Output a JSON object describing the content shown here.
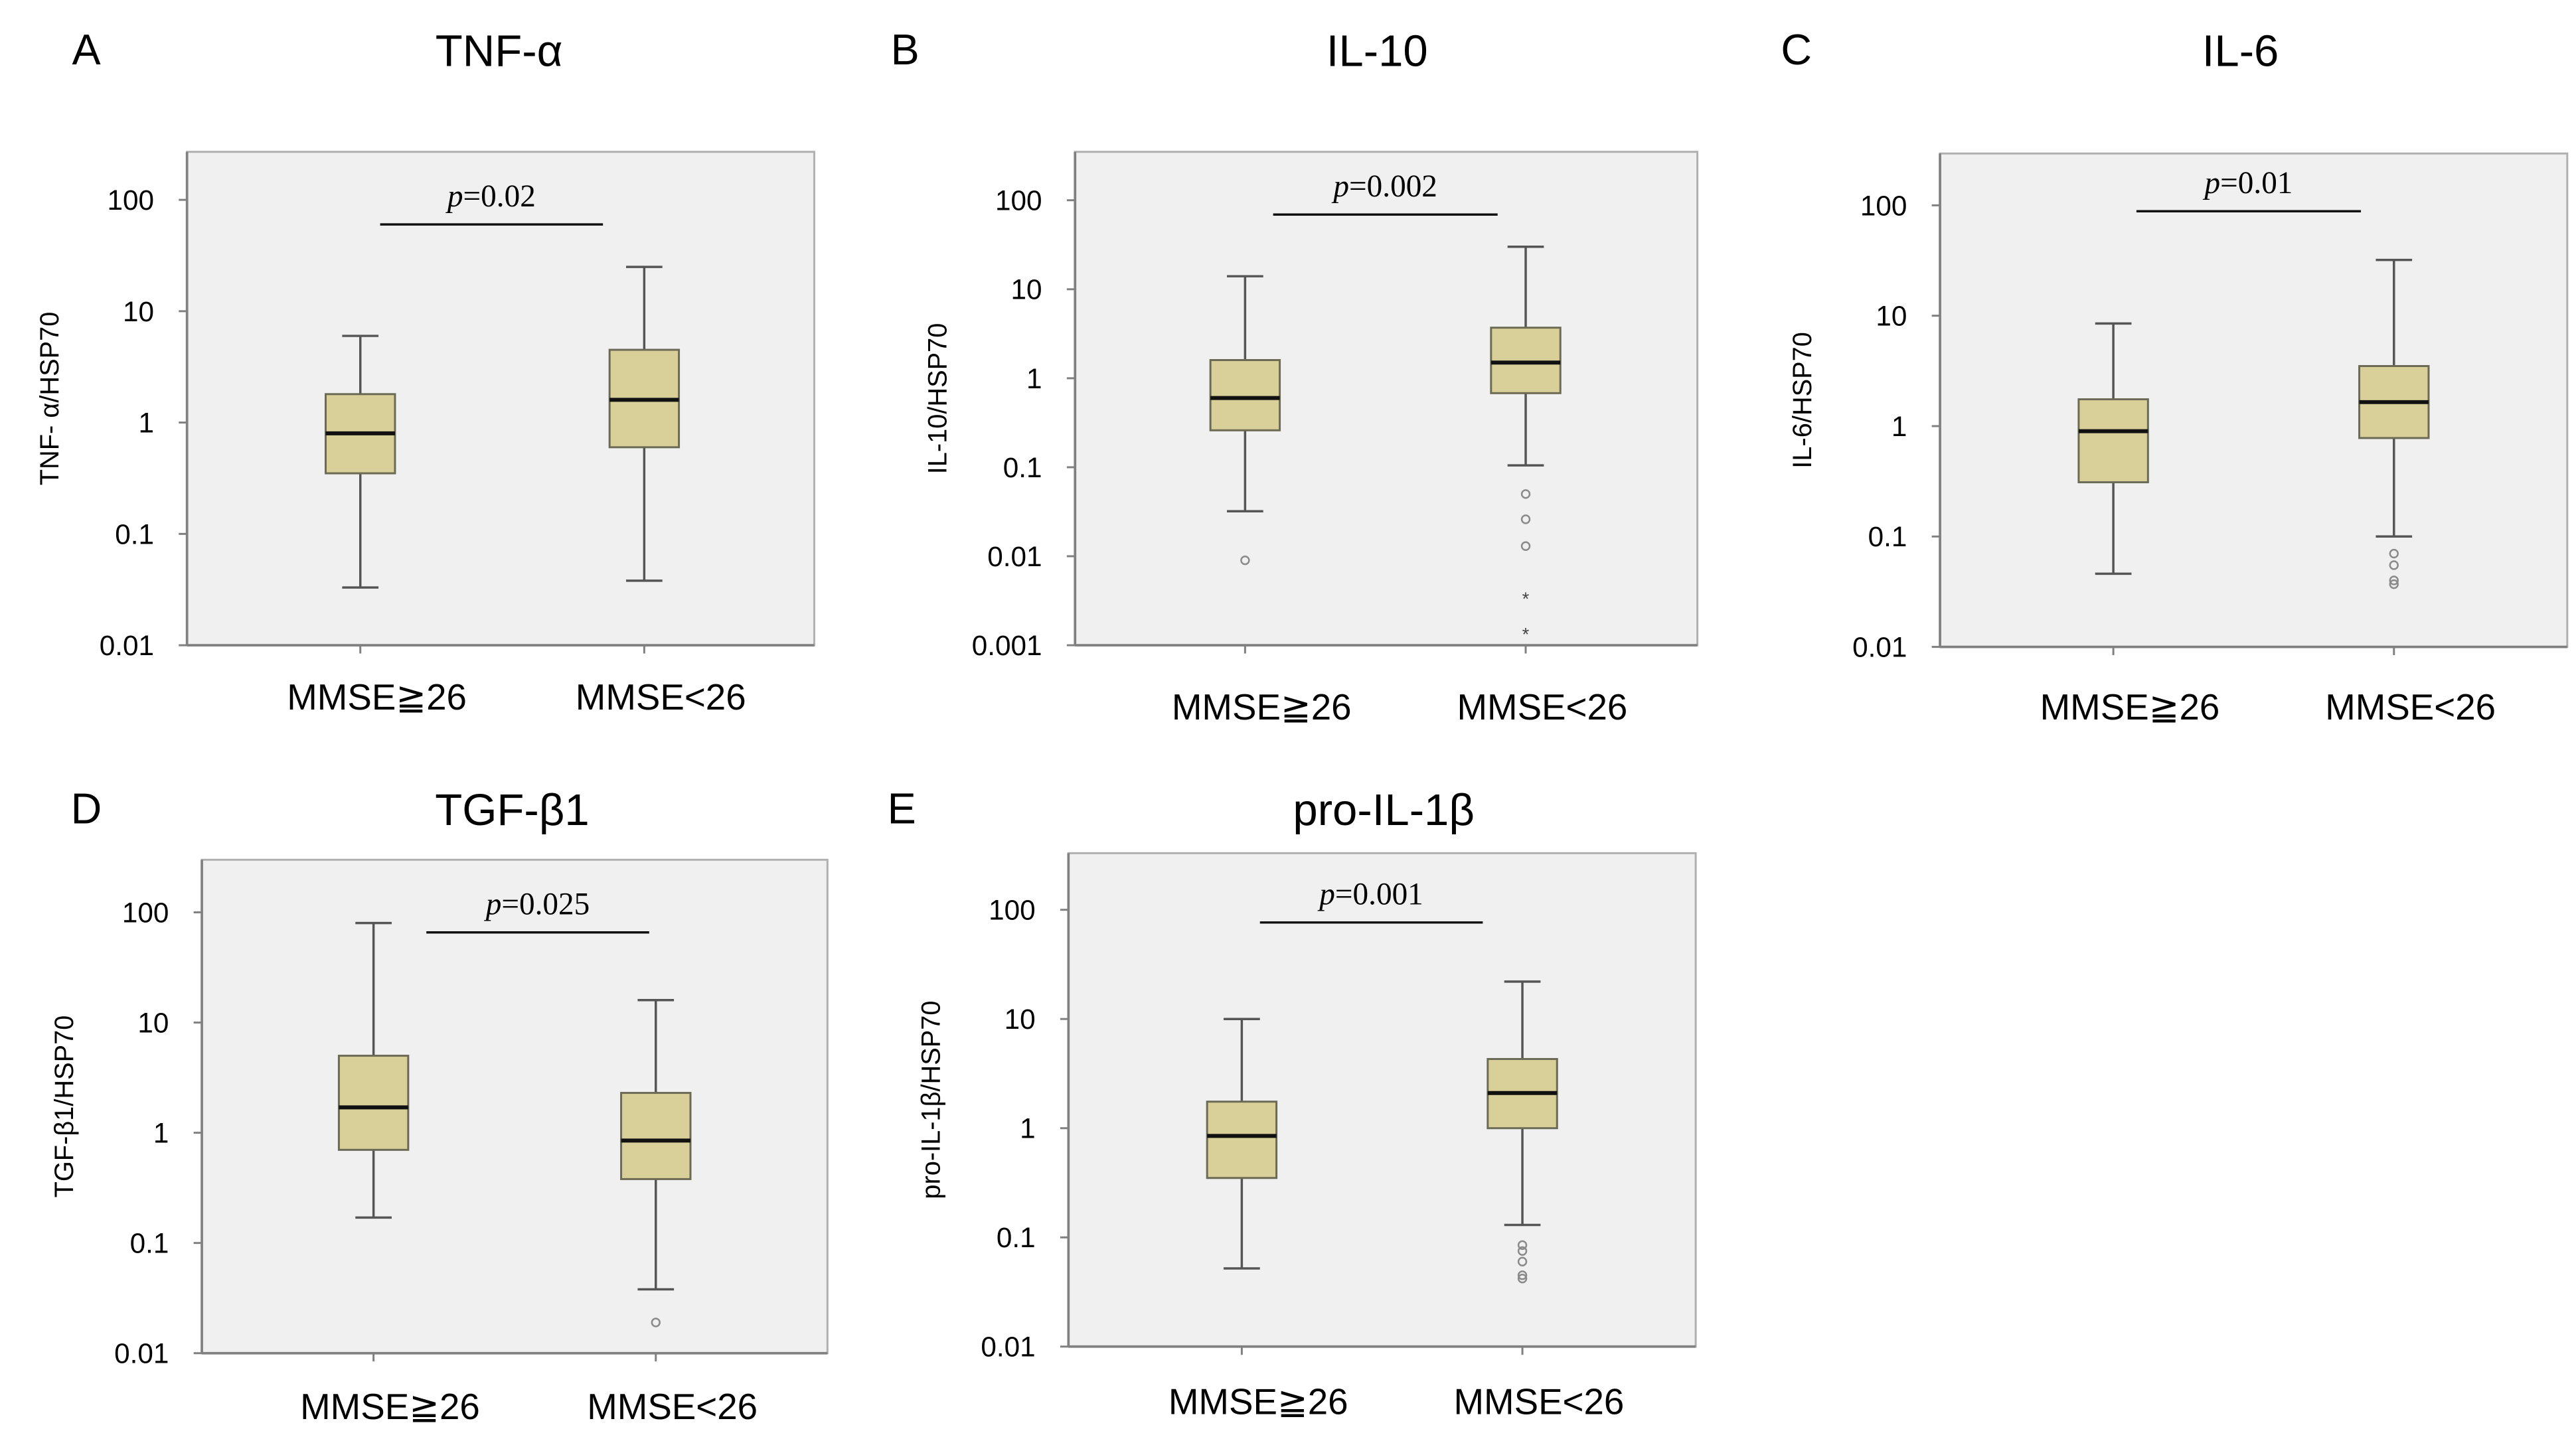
{
  "chart_data": [
    {
      "type": "box",
      "panel_letter": "A",
      "title": "TNF-α",
      "ylabel": "TNF- α/HSP70",
      "yscale": "log",
      "ylim": [
        0.01,
        270
      ],
      "yticks": [
        100,
        10,
        1,
        0.1,
        0.01
      ],
      "ytick_labels": [
        "100",
        "10",
        "1",
        "0.1",
        "0.01"
      ],
      "categories": [
        "MMSE≧26",
        "MMSE<26"
      ],
      "groups": [
        {
          "whisker_high": 6,
          "q3": 1.8,
          "median": 0.8,
          "q1": 0.35,
          "whisker_low": 0.033,
          "outliers": [],
          "extremes": []
        },
        {
          "whisker_high": 25,
          "q3": 4.5,
          "median": 1.6,
          "q1": 0.6,
          "whisker_low": 0.038,
          "outliers": [],
          "extremes": []
        }
      ],
      "p_value_prefix": "p",
      "p_value_text": "=0.02"
    },
    {
      "type": "box",
      "panel_letter": "B",
      "title": "IL-10",
      "ylabel": "IL-10/HSP70",
      "yscale": "log",
      "ylim": [
        0.001,
        350
      ],
      "yticks": [
        100,
        10,
        1,
        0.1,
        0.01,
        0.001
      ],
      "ytick_labels": [
        "100",
        "10",
        "1",
        "0.1",
        "0.01",
        "0.001"
      ],
      "categories": [
        "MMSE≧26",
        "MMSE<26"
      ],
      "groups": [
        {
          "whisker_high": 14,
          "q3": 1.6,
          "median": 0.6,
          "q1": 0.26,
          "whisker_low": 0.032,
          "outliers": [
            0.009
          ],
          "extremes": []
        },
        {
          "whisker_high": 30,
          "q3": 3.7,
          "median": 1.5,
          "q1": 0.68,
          "whisker_low": 0.105,
          "outliers": [
            0.05,
            0.026,
            0.013
          ],
          "extremes": [
            0.0035,
            0.0014
          ]
        }
      ],
      "p_value_prefix": "p",
      "p_value_text": "=0.002"
    },
    {
      "type": "box",
      "panel_letter": "C",
      "title": "IL-6",
      "ylabel": "IL-6/HSP70",
      "yscale": "log",
      "ylim": [
        0.01,
        295
      ],
      "yticks": [
        100,
        10,
        1,
        0.1,
        0.01
      ],
      "ytick_labels": [
        "100",
        "10",
        "1",
        "0.1",
        "0.01"
      ],
      "categories": [
        "MMSE≧26",
        "MMSE<26"
      ],
      "groups": [
        {
          "whisker_high": 8.5,
          "q3": 1.75,
          "median": 0.9,
          "q1": 0.31,
          "whisker_low": 0.046,
          "outliers": [],
          "extremes": []
        },
        {
          "whisker_high": 32,
          "q3": 3.5,
          "median": 1.65,
          "q1": 0.78,
          "whisker_low": 0.1,
          "outliers": [
            0.07,
            0.055,
            0.04,
            0.037
          ],
          "extremes": []
        }
      ],
      "p_value_prefix": "p",
      "p_value_text": "=0.01"
    },
    {
      "type": "box",
      "panel_letter": "D",
      "title": "TGF-β1",
      "ylabel": "TGF-β1/HSP70",
      "yscale": "log",
      "ylim": [
        0.01,
        300
      ],
      "yticks": [
        100,
        10,
        1,
        0.1,
        0.01
      ],
      "ytick_labels": [
        "100",
        "10",
        "1",
        "0.1",
        "0.01"
      ],
      "categories": [
        "MMSE≧26",
        "MMSE<26"
      ],
      "groups": [
        {
          "whisker_high": 80,
          "q3": 5,
          "median": 1.7,
          "q1": 0.7,
          "whisker_low": 0.17,
          "outliers": [],
          "extremes": []
        },
        {
          "whisker_high": 16,
          "q3": 2.3,
          "median": 0.85,
          "q1": 0.38,
          "whisker_low": 0.038,
          "outliers": [
            0.019
          ],
          "extremes": []
        }
      ],
      "p_value_prefix": "p",
      "p_value_text": "=0.025"
    },
    {
      "type": "box",
      "panel_letter": "E",
      "title": "pro-IL-1β",
      "ylabel": "pro-IL-1β/HSP70",
      "yscale": "log",
      "ylim": [
        0.01,
        330
      ],
      "yticks": [
        100,
        10,
        1,
        0.1,
        0.01
      ],
      "ytick_labels": [
        "100",
        "10",
        "1",
        "0.1",
        "0.01"
      ],
      "categories": [
        "MMSE≧26",
        "MMSE<26"
      ],
      "groups": [
        {
          "whisker_high": 10,
          "q3": 1.75,
          "median": 0.85,
          "q1": 0.35,
          "whisker_low": 0.052,
          "outliers": [],
          "extremes": []
        },
        {
          "whisker_high": 22,
          "q3": 4.3,
          "median": 2.1,
          "q1": 1.0,
          "whisker_low": 0.13,
          "outliers": [
            0.085,
            0.075,
            0.06,
            0.045,
            0.042
          ],
          "extremes": []
        }
      ],
      "p_value_prefix": "p",
      "p_value_text": "=0.001"
    }
  ],
  "colors": {
    "box_fill": "#d9cf98",
    "box_stroke": "#6b6a55",
    "plot_bg": "#f0f0f0",
    "frame": "#808080",
    "outlier": "#8a8a8a"
  }
}
